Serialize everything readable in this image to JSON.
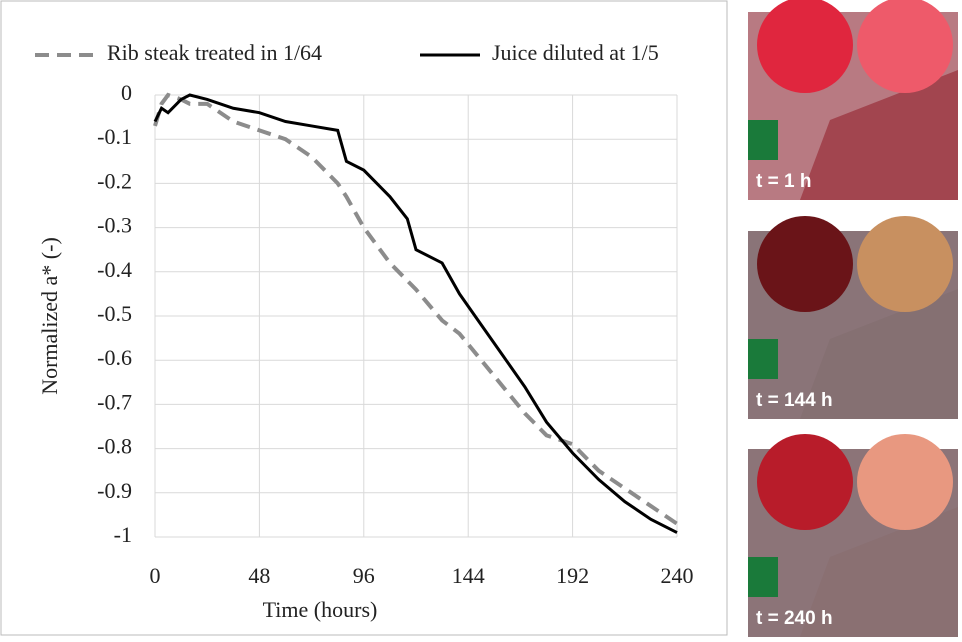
{
  "chart_data": {
    "type": "line",
    "xlabel": "Time (hours)",
    "ylabel": "Normalized a* (-)",
    "x": [
      0,
      3,
      6,
      12,
      16,
      24,
      36,
      48,
      60,
      72,
      84,
      88,
      96,
      108,
      116,
      120,
      132,
      140,
      150,
      160,
      170,
      180,
      192,
      204,
      216,
      228,
      240
    ],
    "series": [
      {
        "name": "Rib steak treated in 1/64",
        "color": "#8c8c8c",
        "dashed": true,
        "values": [
          -0.07,
          -0.02,
          0,
          -0.01,
          -0.02,
          -0.02,
          -0.06,
          -0.08,
          -0.1,
          -0.14,
          -0.2,
          -0.23,
          -0.3,
          -0.38,
          -0.42,
          -0.44,
          -0.51,
          -0.54,
          -0.6,
          -0.66,
          -0.72,
          -0.77,
          -0.79,
          -0.85,
          -0.89,
          -0.93,
          -0.97
        ]
      },
      {
        "name": "Juice diluted at 1/5",
        "color": "#000000",
        "dashed": false,
        "values": [
          -0.06,
          -0.03,
          -0.04,
          -0.01,
          0,
          -0.01,
          -0.03,
          -0.04,
          -0.06,
          -0.07,
          -0.08,
          -0.15,
          -0.17,
          -0.23,
          -0.28,
          -0.35,
          -0.38,
          -0.45,
          -0.52,
          -0.59,
          -0.66,
          -0.74,
          -0.81,
          -0.87,
          -0.92,
          -0.96,
          -0.99
        ]
      }
    ],
    "xlim": [
      0,
      240
    ],
    "xticks": [
      0,
      48,
      96,
      144,
      192,
      240
    ],
    "ylim": [
      -1,
      0
    ],
    "yticks": [
      0,
      -0.1,
      -0.2,
      -0.3,
      -0.4,
      -0.5,
      -0.6,
      -0.7,
      -0.8,
      -0.9,
      -1
    ],
    "grid": true,
    "legend": "top"
  },
  "photos": [
    {
      "label": "t = 1 h"
    },
    {
      "label": "t = 144 h"
    },
    {
      "label": "t = 240 h"
    }
  ]
}
